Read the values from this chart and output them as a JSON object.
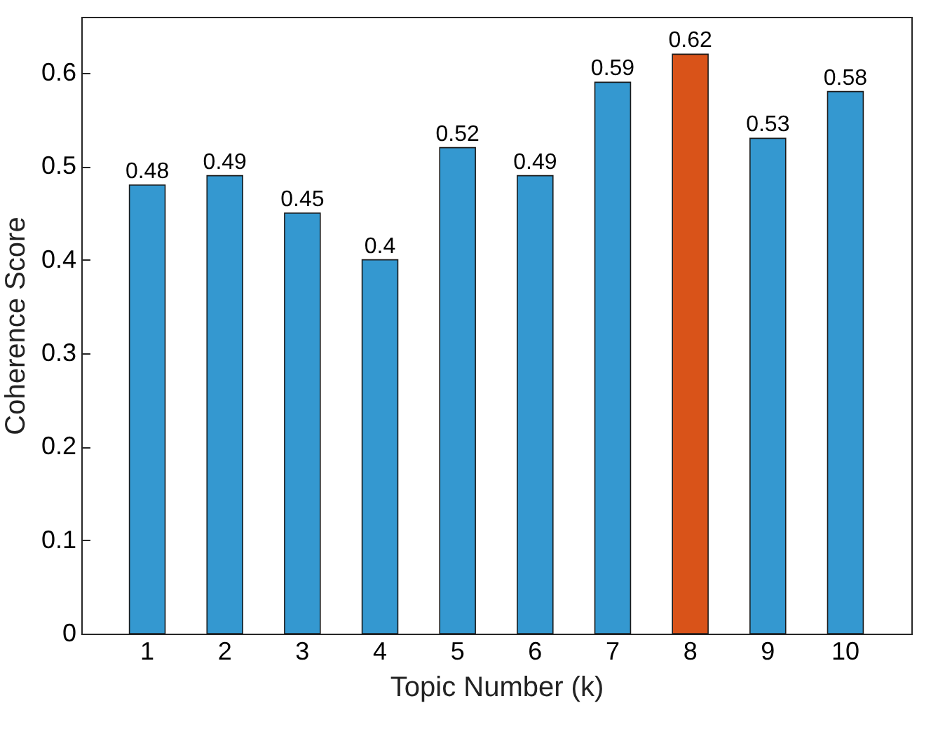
{
  "chart_data": {
    "type": "bar",
    "xlabel": "Topic Number (k)",
    "ylabel": "Coherence Score",
    "categories": [
      "1",
      "2",
      "3",
      "4",
      "5",
      "6",
      "7",
      "8",
      "9",
      "10"
    ],
    "values": [
      0.48,
      0.49,
      0.45,
      0.4,
      0.52,
      0.49,
      0.59,
      0.62,
      0.53,
      0.58
    ],
    "colors": [
      "#3498d0",
      "#3498d0",
      "#3498d0",
      "#3498d0",
      "#3498d0",
      "#3498d0",
      "#3498d0",
      "#d95319",
      "#3498d0",
      "#3498d0"
    ],
    "data_labels": true,
    "ylim": [
      0,
      0.66
    ],
    "yticks": [
      0,
      0.1,
      0.2,
      0.3,
      0.4,
      0.5,
      0.6
    ],
    "grid": false
  }
}
